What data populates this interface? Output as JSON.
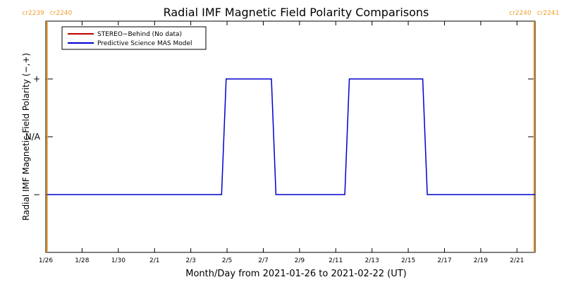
{
  "chart_data": {
    "type": "line",
    "title": "Radial IMF Magnetic Field Polarity Comparisons",
    "xlabel": "Month/Day from 2021-01-26 to 2021-02-22 (UT)",
    "ylabel": "Radial IMF Magnetic Field Polarity (−,+)",
    "x_range_days": [
      0,
      27
    ],
    "x_ticks": [
      {
        "day": 0,
        "label": "1/26"
      },
      {
        "day": 2,
        "label": "1/28"
      },
      {
        "day": 4,
        "label": "1/30"
      },
      {
        "day": 6,
        "label": "2/1"
      },
      {
        "day": 8,
        "label": "2/3"
      },
      {
        "day": 10,
        "label": "2/5"
      },
      {
        "day": 12,
        "label": "2/7"
      },
      {
        "day": 14,
        "label": "2/9"
      },
      {
        "day": 16,
        "label": "2/11"
      },
      {
        "day": 18,
        "label": "2/13"
      },
      {
        "day": 20,
        "label": "2/15"
      },
      {
        "day": 22,
        "label": "2/17"
      },
      {
        "day": 24,
        "label": "2/19"
      },
      {
        "day": 26,
        "label": "2/21"
      }
    ],
    "y_ticks": [
      {
        "value": 1,
        "label": "+"
      },
      {
        "value": 0,
        "label": "N/A"
      },
      {
        "value": -1,
        "label": "−"
      }
    ],
    "ylim": [
      -2,
      2
    ],
    "legend": {
      "placement": "top-left",
      "entries": [
        {
          "label": "STEREO−Behind (No data)",
          "color": "#c00000"
        },
        {
          "label": "Predictive Science MAS Model",
          "color": "#0000cc"
        }
      ]
    },
    "series": [
      {
        "name": "Predictive Science MAS Model",
        "color": "#0000cc",
        "points": [
          [
            0.07,
            -1
          ],
          [
            9.7,
            -1
          ],
          [
            9.95,
            1
          ],
          [
            12.45,
            1
          ],
          [
            12.7,
            -1
          ],
          [
            16.5,
            -1
          ],
          [
            16.75,
            1
          ],
          [
            20.8,
            1
          ],
          [
            21.05,
            -1
          ],
          [
            27,
            -1
          ]
        ]
      }
    ],
    "carrington_markers": [
      {
        "day": 0.07,
        "left_label": "cr2239",
        "right_label": "cr2240",
        "color": "#f0a030"
      },
      {
        "day": 26.95,
        "left_label": "cr2240",
        "right_label": "cr2241",
        "color": "#f0a030"
      }
    ]
  }
}
